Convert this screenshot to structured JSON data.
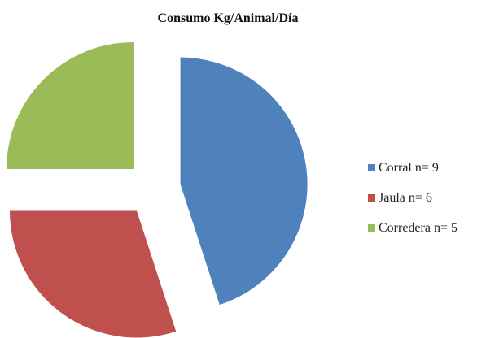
{
  "chart_data": {
    "type": "pie",
    "title": "Consumo  Kg/Animal/Día",
    "categories": [
      "Corral",
      "Jaula",
      "Corredera"
    ],
    "values": [
      9,
      6,
      5
    ],
    "legend_labels": [
      "Corral n= 9",
      "Jaula n= 6",
      "Corredera n= 5"
    ],
    "colors": [
      "#4F81BD",
      "#C0504D",
      "#9BBB59"
    ],
    "exploded": true,
    "legend_position": "right"
  }
}
